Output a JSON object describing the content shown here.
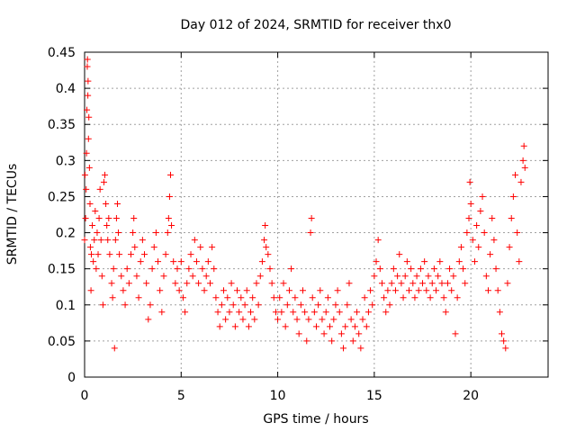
{
  "chart_data": {
    "type": "scatter",
    "title": "Day 012 of 2024, SRMTID for receiver thx0",
    "xlabel": "GPS time / hours",
    "ylabel": "SRMTID / TECUs",
    "xlim": [
      0,
      24
    ],
    "ylim": [
      0,
      0.45
    ],
    "xticks": [
      "0",
      "5",
      "10",
      "15",
      "20"
    ],
    "yticks": [
      "0",
      "0.05",
      "0.1",
      "0.15",
      "0.2",
      "0.25",
      "0.3",
      "0.35",
      "0.4",
      "0.45"
    ],
    "grid": true,
    "marker": "+",
    "color": "#ff0000",
    "series": [
      {
        "name": "SRMTID thx0",
        "points": [
          [
            0.0,
            0.19
          ],
          [
            0.02,
            0.28
          ],
          [
            0.05,
            0.22
          ],
          [
            0.08,
            0.26
          ],
          [
            0.1,
            0.31
          ],
          [
            0.12,
            0.37
          ],
          [
            0.14,
            0.43
          ],
          [
            0.15,
            0.44
          ],
          [
            0.17,
            0.39
          ],
          [
            0.18,
            0.41
          ],
          [
            0.2,
            0.33
          ],
          [
            0.22,
            0.36
          ],
          [
            0.25,
            0.29
          ],
          [
            0.28,
            0.24
          ],
          [
            0.3,
            0.18
          ],
          [
            0.33,
            0.12
          ],
          [
            0.35,
            0.17
          ],
          [
            0.4,
            0.21
          ],
          [
            0.45,
            0.16
          ],
          [
            0.5,
            0.19
          ],
          [
            0.55,
            0.23
          ],
          [
            0.6,
            0.15
          ],
          [
            0.65,
            0.2
          ],
          [
            0.7,
            0.17
          ],
          [
            0.75,
            0.22
          ],
          [
            0.8,
            0.26
          ],
          [
            0.85,
            0.19
          ],
          [
            0.9,
            0.14
          ],
          [
            0.95,
            0.1
          ],
          [
            1.0,
            0.27
          ],
          [
            1.05,
            0.28
          ],
          [
            1.1,
            0.24
          ],
          [
            1.15,
            0.21
          ],
          [
            1.2,
            0.19
          ],
          [
            1.25,
            0.22
          ],
          [
            1.3,
            0.17
          ],
          [
            1.4,
            0.13
          ],
          [
            1.45,
            0.11
          ],
          [
            1.5,
            0.15
          ],
          [
            1.55,
            0.04
          ],
          [
            1.6,
            0.19
          ],
          [
            1.65,
            0.22
          ],
          [
            1.7,
            0.24
          ],
          [
            1.75,
            0.2
          ],
          [
            1.8,
            0.17
          ],
          [
            1.9,
            0.14
          ],
          [
            2.0,
            0.12
          ],
          [
            2.1,
            0.1
          ],
          [
            2.2,
            0.15
          ],
          [
            2.3,
            0.13
          ],
          [
            2.4,
            0.17
          ],
          [
            2.5,
            0.2
          ],
          [
            2.55,
            0.22
          ],
          [
            2.6,
            0.18
          ],
          [
            2.7,
            0.14
          ],
          [
            2.8,
            0.11
          ],
          [
            2.9,
            0.16
          ],
          [
            3.0,
            0.19
          ],
          [
            3.1,
            0.17
          ],
          [
            3.2,
            0.13
          ],
          [
            3.3,
            0.08
          ],
          [
            3.4,
            0.1
          ],
          [
            3.5,
            0.15
          ],
          [
            3.6,
            0.18
          ],
          [
            3.7,
            0.2
          ],
          [
            3.8,
            0.16
          ],
          [
            3.9,
            0.12
          ],
          [
            4.0,
            0.09
          ],
          [
            4.1,
            0.14
          ],
          [
            4.2,
            0.17
          ],
          [
            4.3,
            0.2
          ],
          [
            4.35,
            0.22
          ],
          [
            4.4,
            0.25
          ],
          [
            4.45,
            0.28
          ],
          [
            4.5,
            0.21
          ],
          [
            4.6,
            0.16
          ],
          [
            4.7,
            0.13
          ],
          [
            4.8,
            0.15
          ],
          [
            4.9,
            0.12
          ],
          [
            5.0,
            0.16
          ],
          [
            5.1,
            0.11
          ],
          [
            5.2,
            0.09
          ],
          [
            5.3,
            0.13
          ],
          [
            5.4,
            0.15
          ],
          [
            5.5,
            0.17
          ],
          [
            5.6,
            0.14
          ],
          [
            5.7,
            0.19
          ],
          [
            5.8,
            0.16
          ],
          [
            5.9,
            0.13
          ],
          [
            6.0,
            0.18
          ],
          [
            6.1,
            0.15
          ],
          [
            6.2,
            0.12
          ],
          [
            6.3,
            0.14
          ],
          [
            6.4,
            0.16
          ],
          [
            6.5,
            0.13
          ],
          [
            6.6,
            0.18
          ],
          [
            6.7,
            0.15
          ],
          [
            6.8,
            0.11
          ],
          [
            6.9,
            0.09
          ],
          [
            7.0,
            0.07
          ],
          [
            7.1,
            0.1
          ],
          [
            7.2,
            0.12
          ],
          [
            7.3,
            0.08
          ],
          [
            7.4,
            0.11
          ],
          [
            7.5,
            0.09
          ],
          [
            7.6,
            0.13
          ],
          [
            7.7,
            0.1
          ],
          [
            7.8,
            0.07
          ],
          [
            7.9,
            0.12
          ],
          [
            8.0,
            0.09
          ],
          [
            8.1,
            0.11
          ],
          [
            8.2,
            0.08
          ],
          [
            8.3,
            0.1
          ],
          [
            8.4,
            0.12
          ],
          [
            8.5,
            0.07
          ],
          [
            8.6,
            0.09
          ],
          [
            8.7,
            0.11
          ],
          [
            8.8,
            0.08
          ],
          [
            8.9,
            0.13
          ],
          [
            9.0,
            0.1
          ],
          [
            9.1,
            0.14
          ],
          [
            9.2,
            0.16
          ],
          [
            9.3,
            0.19
          ],
          [
            9.35,
            0.21
          ],
          [
            9.4,
            0.18
          ],
          [
            9.5,
            0.17
          ],
          [
            9.6,
            0.15
          ],
          [
            9.7,
            0.13
          ],
          [
            9.8,
            0.11
          ],
          [
            9.9,
            0.09
          ],
          [
            10.0,
            0.08
          ],
          [
            10.1,
            0.11
          ],
          [
            10.2,
            0.09
          ],
          [
            10.3,
            0.13
          ],
          [
            10.4,
            0.07
          ],
          [
            10.5,
            0.1
          ],
          [
            10.6,
            0.12
          ],
          [
            10.7,
            0.15
          ],
          [
            10.8,
            0.09
          ],
          [
            10.9,
            0.11
          ],
          [
            11.0,
            0.08
          ],
          [
            11.1,
            0.06
          ],
          [
            11.2,
            0.1
          ],
          [
            11.3,
            0.12
          ],
          [
            11.4,
            0.09
          ],
          [
            11.5,
            0.05
          ],
          [
            11.6,
            0.08
          ],
          [
            11.7,
            0.2
          ],
          [
            11.75,
            0.22
          ],
          [
            11.8,
            0.11
          ],
          [
            11.9,
            0.09
          ],
          [
            12.0,
            0.07
          ],
          [
            12.1,
            0.1
          ],
          [
            12.2,
            0.12
          ],
          [
            12.3,
            0.08
          ],
          [
            12.4,
            0.06
          ],
          [
            12.5,
            0.09
          ],
          [
            12.6,
            0.11
          ],
          [
            12.7,
            0.07
          ],
          [
            12.8,
            0.05
          ],
          [
            12.9,
            0.08
          ],
          [
            13.0,
            0.1
          ],
          [
            13.1,
            0.12
          ],
          [
            13.2,
            0.09
          ],
          [
            13.3,
            0.06
          ],
          [
            13.4,
            0.04
          ],
          [
            13.5,
            0.07
          ],
          [
            13.6,
            0.1
          ],
          [
            13.7,
            0.13
          ],
          [
            13.8,
            0.08
          ],
          [
            13.9,
            0.05
          ],
          [
            14.0,
            0.07
          ],
          [
            14.1,
            0.09
          ],
          [
            14.2,
            0.06
          ],
          [
            14.3,
            0.04
          ],
          [
            14.4,
            0.08
          ],
          [
            14.5,
            0.11
          ],
          [
            14.6,
            0.07
          ],
          [
            14.7,
            0.09
          ],
          [
            14.8,
            0.12
          ],
          [
            14.9,
            0.1
          ],
          [
            15.0,
            0.14
          ],
          [
            15.1,
            0.16
          ],
          [
            15.2,
            0.19
          ],
          [
            15.3,
            0.15
          ],
          [
            15.4,
            0.13
          ],
          [
            15.5,
            0.11
          ],
          [
            15.6,
            0.09
          ],
          [
            15.7,
            0.12
          ],
          [
            15.8,
            0.1
          ],
          [
            15.9,
            0.13
          ],
          [
            16.0,
            0.15
          ],
          [
            16.1,
            0.12
          ],
          [
            16.2,
            0.14
          ],
          [
            16.3,
            0.17
          ],
          [
            16.4,
            0.13
          ],
          [
            16.5,
            0.11
          ],
          [
            16.6,
            0.14
          ],
          [
            16.7,
            0.16
          ],
          [
            16.8,
            0.12
          ],
          [
            16.9,
            0.15
          ],
          [
            17.0,
            0.13
          ],
          [
            17.1,
            0.11
          ],
          [
            17.2,
            0.14
          ],
          [
            17.3,
            0.12
          ],
          [
            17.4,
            0.15
          ],
          [
            17.5,
            0.13
          ],
          [
            17.6,
            0.16
          ],
          [
            17.7,
            0.12
          ],
          [
            17.8,
            0.14
          ],
          [
            17.9,
            0.11
          ],
          [
            18.0,
            0.13
          ],
          [
            18.1,
            0.15
          ],
          [
            18.2,
            0.12
          ],
          [
            18.3,
            0.14
          ],
          [
            18.4,
            0.16
          ],
          [
            18.5,
            0.13
          ],
          [
            18.6,
            0.11
          ],
          [
            18.7,
            0.09
          ],
          [
            18.8,
            0.13
          ],
          [
            18.9,
            0.15
          ],
          [
            19.0,
            0.12
          ],
          [
            19.1,
            0.14
          ],
          [
            19.2,
            0.06
          ],
          [
            19.3,
            0.11
          ],
          [
            19.4,
            0.16
          ],
          [
            19.5,
            0.18
          ],
          [
            19.6,
            0.15
          ],
          [
            19.7,
            0.13
          ],
          [
            19.8,
            0.2
          ],
          [
            19.9,
            0.22
          ],
          [
            19.95,
            0.27
          ],
          [
            20.0,
            0.24
          ],
          [
            20.1,
            0.19
          ],
          [
            20.2,
            0.16
          ],
          [
            20.3,
            0.21
          ],
          [
            20.4,
            0.18
          ],
          [
            20.5,
            0.23
          ],
          [
            20.6,
            0.25
          ],
          [
            20.7,
            0.2
          ],
          [
            20.8,
            0.14
          ],
          [
            20.9,
            0.12
          ],
          [
            21.0,
            0.17
          ],
          [
            21.1,
            0.22
          ],
          [
            21.2,
            0.19
          ],
          [
            21.3,
            0.15
          ],
          [
            21.4,
            0.12
          ],
          [
            21.5,
            0.09
          ],
          [
            21.6,
            0.06
          ],
          [
            21.7,
            0.05
          ],
          [
            21.8,
            0.04
          ],
          [
            21.9,
            0.13
          ],
          [
            22.0,
            0.18
          ],
          [
            22.1,
            0.22
          ],
          [
            22.2,
            0.25
          ],
          [
            22.3,
            0.28
          ],
          [
            22.4,
            0.2
          ],
          [
            22.5,
            0.16
          ],
          [
            22.6,
            0.27
          ],
          [
            22.7,
            0.3
          ],
          [
            22.75,
            0.32
          ],
          [
            22.8,
            0.29
          ]
        ]
      }
    ]
  }
}
